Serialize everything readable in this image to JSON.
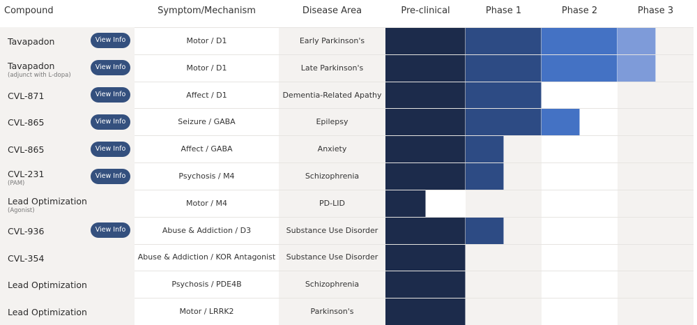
{
  "header": [
    "Compound",
    "Symptom/Mechanism",
    "Disease Area",
    "Pre-clinical",
    "Phase 1",
    "Phase 2",
    "Phase 3"
  ],
  "button_label": "View Info",
  "rows": [
    {
      "compound": "Tavapadon",
      "button": true,
      "mechanism": "Motor / D1",
      "area": "Early Parkinson's",
      "progress": 3.5
    },
    {
      "compound": "Tavapadon",
      "note": "(adjunct with L-dopa)",
      "button": true,
      "mechanism": "Motor / D1",
      "area": "Late Parkinson's",
      "progress": 3.5
    },
    {
      "compound": "CVL-871",
      "button": true,
      "mechanism": "Affect / D1",
      "area": "Dementia-Related Apathy",
      "progress": 2
    },
    {
      "compound": "CVL-865",
      "button": true,
      "mechanism": "Seizure / GABA",
      "area": "Epilepsy",
      "progress": 2.5
    },
    {
      "compound": "CVL-865",
      "button": true,
      "mechanism": "Affect / GABA",
      "area": "Anxiety",
      "progress": 1.5
    },
    {
      "compound": "CVL-231",
      "note": "(PAM)",
      "button": true,
      "mechanism": "Psychosis / M4",
      "area": "Schizophrenia",
      "progress": 1.5
    },
    {
      "compound": "Lead Optimization",
      "note": "(Agonist)",
      "button": false,
      "mechanism": "Motor / M4",
      "area": "PD-LID",
      "progress": 0.5
    },
    {
      "compound": "CVL-936",
      "button": true,
      "mechanism": "Abuse & Addiction / D3",
      "area": "Substance Use Disorder",
      "progress": 1.5
    },
    {
      "compound": "CVL-354",
      "button": false,
      "mechanism": "Abuse & Addiction / KOR Antagonist",
      "area": "Substance Use Disorder",
      "progress": 1
    },
    {
      "compound": "Lead Optimization",
      "button": false,
      "mechanism": "Psychosis / PDE4B",
      "area": "Schizophrenia",
      "progress": 1
    },
    {
      "compound": "Lead Optimization",
      "button": false,
      "mechanism": "Motor / LRRK2",
      "area": "Parkinson's",
      "progress": 1
    }
  ]
}
